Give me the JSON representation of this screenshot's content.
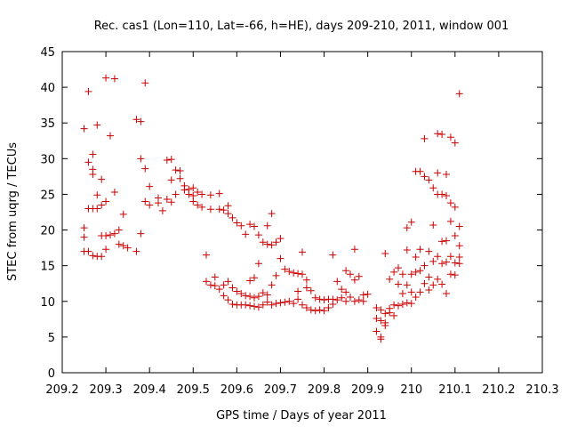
{
  "chart_data": {
    "type": "scatter",
    "title": "Rec. cas1 (Lon=110, Lat=-66, h=HE), days 209-210, 2011, window 001",
    "xlabel": "GPS time / Days of year 2011",
    "ylabel": "STEC from uqrg / TECUs",
    "xlim": [
      209.2,
      210.3
    ],
    "ylim": [
      0,
      45
    ],
    "xticks": [
      "209.2",
      "209.3",
      "209.4",
      "209.5",
      "209.6",
      "209.7",
      "209.8",
      "209.9",
      "210",
      "210.1",
      "210.2",
      "210.3"
    ],
    "yticks": [
      "0",
      "5",
      "10",
      "15",
      "20",
      "25",
      "30",
      "35",
      "40",
      "45"
    ],
    "grid": false,
    "legend": "none",
    "marker_color": "#cc0000",
    "series": [
      {
        "marker": "plus",
        "points": [
          [
            209.25,
            34.2
          ],
          [
            209.25,
            20.3
          ],
          [
            209.25,
            19.0
          ],
          [
            209.25,
            17.0
          ],
          [
            209.26,
            39.4
          ],
          [
            209.26,
            29.5
          ],
          [
            209.26,
            23.0
          ],
          [
            209.26,
            17.0
          ],
          [
            209.27,
            30.6
          ],
          [
            209.27,
            28.5
          ],
          [
            209.27,
            27.8
          ],
          [
            209.27,
            23.0
          ],
          [
            209.27,
            16.4
          ],
          [
            209.28,
            34.7
          ],
          [
            209.28,
            24.9
          ],
          [
            209.28,
            23.0
          ],
          [
            209.28,
            16.3
          ],
          [
            209.29,
            27.1
          ],
          [
            209.29,
            23.5
          ],
          [
            209.29,
            19.2
          ],
          [
            209.29,
            16.3
          ],
          [
            209.3,
            41.3
          ],
          [
            209.3,
            24.0
          ],
          [
            209.3,
            19.2
          ],
          [
            209.3,
            17.3
          ],
          [
            209.31,
            33.2
          ],
          [
            209.31,
            19.3
          ],
          [
            209.32,
            41.2
          ],
          [
            209.32,
            25.3
          ],
          [
            209.32,
            19.5
          ],
          [
            209.33,
            20.0
          ],
          [
            209.33,
            18.0
          ],
          [
            209.34,
            22.2
          ],
          [
            209.34,
            17.8
          ],
          [
            209.35,
            17.5
          ],
          [
            209.37,
            35.5
          ],
          [
            209.37,
            17.0
          ],
          [
            209.38,
            35.2
          ],
          [
            209.38,
            30.0
          ],
          [
            209.38,
            19.5
          ],
          [
            209.39,
            40.6
          ],
          [
            209.39,
            28.6
          ],
          [
            209.39,
            24.0
          ],
          [
            209.4,
            26.1
          ],
          [
            209.4,
            23.5
          ],
          [
            209.42,
            24.5
          ],
          [
            209.42,
            23.8
          ],
          [
            209.43,
            22.7
          ],
          [
            209.44,
            29.8
          ],
          [
            209.44,
            24.3
          ],
          [
            209.45,
            29.9
          ],
          [
            209.45,
            27.0
          ],
          [
            209.45,
            23.9
          ],
          [
            209.46,
            28.4
          ],
          [
            209.46,
            25.0
          ],
          [
            209.47,
            28.3
          ],
          [
            209.47,
            27.2
          ],
          [
            209.48,
            26.2
          ],
          [
            209.48,
            25.6
          ],
          [
            209.49,
            25.7
          ],
          [
            209.49,
            25.0
          ],
          [
            209.5,
            25.9
          ],
          [
            209.5,
            24.8
          ],
          [
            209.5,
            24.0
          ],
          [
            209.51,
            25.3
          ],
          [
            209.51,
            23.5
          ],
          [
            209.52,
            25.0
          ],
          [
            209.52,
            23.2
          ],
          [
            209.53,
            16.5
          ],
          [
            209.53,
            12.8
          ],
          [
            209.54,
            24.9
          ],
          [
            209.54,
            22.9
          ],
          [
            209.54,
            12.3
          ],
          [
            209.55,
            13.4
          ],
          [
            209.55,
            12.2
          ],
          [
            209.56,
            25.1
          ],
          [
            209.56,
            22.9
          ],
          [
            209.56,
            11.7
          ],
          [
            209.57,
            22.8
          ],
          [
            209.57,
            12.3
          ],
          [
            209.57,
            10.8
          ],
          [
            209.58,
            23.4
          ],
          [
            209.58,
            22.3
          ],
          [
            209.58,
            12.8
          ],
          [
            209.58,
            10.2
          ],
          [
            209.59,
            21.7
          ],
          [
            209.59,
            11.9
          ],
          [
            209.59,
            9.6
          ],
          [
            209.6,
            21.0
          ],
          [
            209.6,
            11.4
          ],
          [
            209.6,
            9.5
          ],
          [
            209.61,
            20.6
          ],
          [
            209.61,
            11.1
          ],
          [
            209.61,
            9.5
          ],
          [
            209.62,
            19.4
          ],
          [
            209.62,
            10.8
          ],
          [
            209.62,
            9.5
          ],
          [
            209.63,
            20.8
          ],
          [
            209.63,
            12.9
          ],
          [
            209.63,
            10.7
          ],
          [
            209.63,
            9.4
          ],
          [
            209.64,
            20.5
          ],
          [
            209.64,
            13.3
          ],
          [
            209.64,
            10.5
          ],
          [
            209.64,
            9.3
          ],
          [
            209.65,
            19.3
          ],
          [
            209.65,
            15.3
          ],
          [
            209.65,
            10.7
          ],
          [
            209.65,
            9.2
          ],
          [
            209.66,
            18.3
          ],
          [
            209.66,
            11.2
          ],
          [
            209.66,
            9.5
          ],
          [
            209.67,
            20.6
          ],
          [
            209.67,
            18.0
          ],
          [
            209.67,
            10.9
          ],
          [
            209.67,
            9.9
          ],
          [
            209.68,
            22.3
          ],
          [
            209.68,
            17.9
          ],
          [
            209.68,
            12.3
          ],
          [
            209.68,
            9.5
          ],
          [
            209.69,
            18.3
          ],
          [
            209.69,
            13.6
          ],
          [
            209.69,
            9.7
          ],
          [
            209.7,
            18.8
          ],
          [
            209.7,
            16.0
          ],
          [
            209.7,
            9.8
          ],
          [
            209.71,
            14.5
          ],
          [
            209.71,
            9.9
          ],
          [
            209.72,
            14.2
          ],
          [
            209.72,
            10.0
          ],
          [
            209.73,
            14.0
          ],
          [
            209.73,
            9.7
          ],
          [
            209.74,
            13.9
          ],
          [
            209.74,
            11.4
          ],
          [
            209.74,
            10.3
          ],
          [
            209.75,
            16.9
          ],
          [
            209.75,
            13.8
          ],
          [
            209.75,
            9.5
          ],
          [
            209.76,
            13.0
          ],
          [
            209.76,
            11.9
          ],
          [
            209.76,
            9.1
          ],
          [
            209.77,
            11.5
          ],
          [
            209.77,
            8.8
          ],
          [
            209.78,
            10.5
          ],
          [
            209.78,
            8.7
          ],
          [
            209.79,
            10.3
          ],
          [
            209.79,
            8.8
          ],
          [
            209.8,
            10.2
          ],
          [
            209.8,
            8.7
          ],
          [
            209.81,
            10.3
          ],
          [
            209.81,
            9.1
          ],
          [
            209.82,
            16.5
          ],
          [
            209.82,
            10.3
          ],
          [
            209.82,
            9.6
          ],
          [
            209.83,
            12.8
          ],
          [
            209.83,
            10.2
          ],
          [
            209.84,
            11.7
          ],
          [
            209.84,
            10.5
          ],
          [
            209.85,
            14.3
          ],
          [
            209.85,
            11.3
          ],
          [
            209.85,
            10.0
          ],
          [
            209.86,
            13.8
          ],
          [
            209.86,
            10.6
          ],
          [
            209.87,
            17.3
          ],
          [
            209.87,
            13.0
          ],
          [
            209.87,
            10.0
          ],
          [
            209.88,
            13.5
          ],
          [
            209.88,
            10.2
          ],
          [
            209.89,
            10.9
          ],
          [
            209.89,
            10.0
          ],
          [
            209.9,
            11.0
          ],
          [
            209.92,
            9.1
          ],
          [
            209.92,
            7.6
          ],
          [
            209.92,
            5.8
          ],
          [
            209.93,
            8.8
          ],
          [
            209.93,
            7.3
          ],
          [
            209.93,
            5.0
          ],
          [
            209.93,
            4.7
          ],
          [
            209.94,
            16.7
          ],
          [
            209.94,
            8.3
          ],
          [
            209.94,
            7.0
          ],
          [
            209.94,
            6.6
          ],
          [
            209.95,
            13.1
          ],
          [
            209.95,
            9.0
          ],
          [
            209.95,
            8.4
          ],
          [
            209.96,
            14.1
          ],
          [
            209.96,
            9.5
          ],
          [
            209.96,
            8.0
          ],
          [
            209.97,
            14.7
          ],
          [
            209.97,
            12.4
          ],
          [
            209.97,
            9.4
          ],
          [
            209.98,
            13.8
          ],
          [
            209.98,
            11.1
          ],
          [
            209.98,
            9.6
          ],
          [
            209.99,
            20.3
          ],
          [
            209.99,
            17.2
          ],
          [
            209.99,
            12.3
          ],
          [
            209.99,
            9.8
          ],
          [
            210.0,
            21.1
          ],
          [
            210.0,
            13.8
          ],
          [
            210.0,
            11.3
          ],
          [
            210.0,
            9.7
          ],
          [
            210.01,
            28.2
          ],
          [
            210.01,
            16.2
          ],
          [
            210.01,
            14.1
          ],
          [
            210.01,
            10.6
          ],
          [
            210.02,
            28.2
          ],
          [
            210.02,
            17.3
          ],
          [
            210.02,
            14.3
          ],
          [
            210.02,
            11.3
          ],
          [
            210.03,
            32.8
          ],
          [
            210.03,
            27.5
          ],
          [
            210.03,
            15.0
          ],
          [
            210.03,
            12.5
          ],
          [
            210.04,
            27.0
          ],
          [
            210.04,
            17.0
          ],
          [
            210.04,
            13.4
          ],
          [
            210.04,
            11.6
          ],
          [
            210.05,
            25.9
          ],
          [
            210.05,
            20.7
          ],
          [
            210.05,
            15.6
          ],
          [
            210.05,
            12.3
          ],
          [
            210.06,
            33.5
          ],
          [
            210.06,
            28.0
          ],
          [
            210.06,
            25.0
          ],
          [
            210.06,
            16.3
          ],
          [
            210.06,
            13.1
          ],
          [
            210.07,
            33.4
          ],
          [
            210.07,
            25.0
          ],
          [
            210.07,
            18.4
          ],
          [
            210.07,
            15.3
          ],
          [
            210.07,
            12.4
          ],
          [
            210.08,
            27.8
          ],
          [
            210.08,
            24.8
          ],
          [
            210.08,
            18.5
          ],
          [
            210.08,
            15.5
          ],
          [
            210.08,
            11.1
          ],
          [
            210.09,
            33.0
          ],
          [
            210.09,
            23.8
          ],
          [
            210.09,
            21.2
          ],
          [
            210.09,
            16.3
          ],
          [
            210.09,
            13.8
          ],
          [
            210.1,
            32.2
          ],
          [
            210.1,
            23.2
          ],
          [
            210.1,
            19.2
          ],
          [
            210.1,
            15.4
          ],
          [
            210.1,
            13.7
          ],
          [
            210.11,
            39.1
          ],
          [
            210.11,
            20.5
          ],
          [
            210.11,
            17.8
          ],
          [
            210.11,
            16.2
          ],
          [
            210.11,
            15.3
          ]
        ]
      }
    ]
  }
}
